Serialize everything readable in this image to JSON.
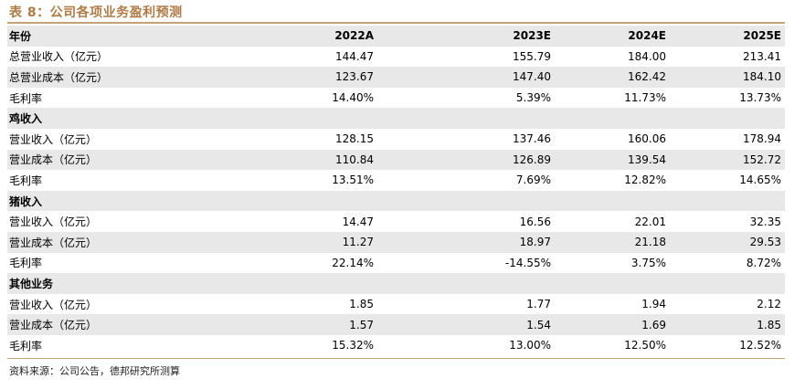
{
  "title": "表 8：公司各项业务盈利预测",
  "header": {
    "label": "年份",
    "years": [
      "2022A",
      "2023E",
      "2024E",
      "2025E"
    ]
  },
  "rows": [
    {
      "type": "data",
      "label": "总营业收入（亿元）",
      "values": [
        "144.47",
        "155.79",
        "184.00",
        "213.41"
      ]
    },
    {
      "type": "data",
      "label": "总营业成本（亿元）",
      "values": [
        "123.67",
        "147.40",
        "162.42",
        "184.10"
      ]
    },
    {
      "type": "data",
      "label": "毛利率",
      "values": [
        "14.40%",
        "5.39%",
        "11.73%",
        "13.73%"
      ]
    },
    {
      "type": "section",
      "label": "鸡收入"
    },
    {
      "type": "data",
      "label": "营业收入（亿元）",
      "values": [
        "128.15",
        "137.46",
        "160.06",
        "178.94"
      ]
    },
    {
      "type": "data",
      "label": "营业成本（亿元）",
      "values": [
        "110.84",
        "126.89",
        "139.54",
        "152.72"
      ]
    },
    {
      "type": "data",
      "label": "毛利率",
      "values": [
        "13.51%",
        "7.69%",
        "12.82%",
        "14.65%"
      ]
    },
    {
      "type": "section",
      "label": "猪收入"
    },
    {
      "type": "data",
      "label": "营业收入（亿元）",
      "values": [
        "14.47",
        "16.56",
        "22.01",
        "32.35"
      ]
    },
    {
      "type": "data",
      "label": "营业成本（亿元）",
      "values": [
        "11.27",
        "18.97",
        "21.18",
        "29.53"
      ]
    },
    {
      "type": "data",
      "label": "毛利率",
      "values": [
        "22.14%",
        "-14.55%",
        "3.75%",
        "8.72%"
      ]
    },
    {
      "type": "section",
      "label": "其他业务"
    },
    {
      "type": "data",
      "label": "营业收入（亿元）",
      "values": [
        "1.85",
        "1.77",
        "1.94",
        "2.12"
      ]
    },
    {
      "type": "data",
      "label": "营业成本（亿元）",
      "values": [
        "1.57",
        "1.54",
        "1.69",
        "1.85"
      ]
    },
    {
      "type": "data",
      "label": "毛利率",
      "values": [
        "15.32%",
        "13.00%",
        "12.50%",
        "12.52%"
      ]
    }
  ],
  "source": "资料来源：公司公告，德邦研究所测算",
  "colors": {
    "accent": "#b07a45",
    "rule": "#c8a078",
    "shade": "#e8e8e8"
  }
}
